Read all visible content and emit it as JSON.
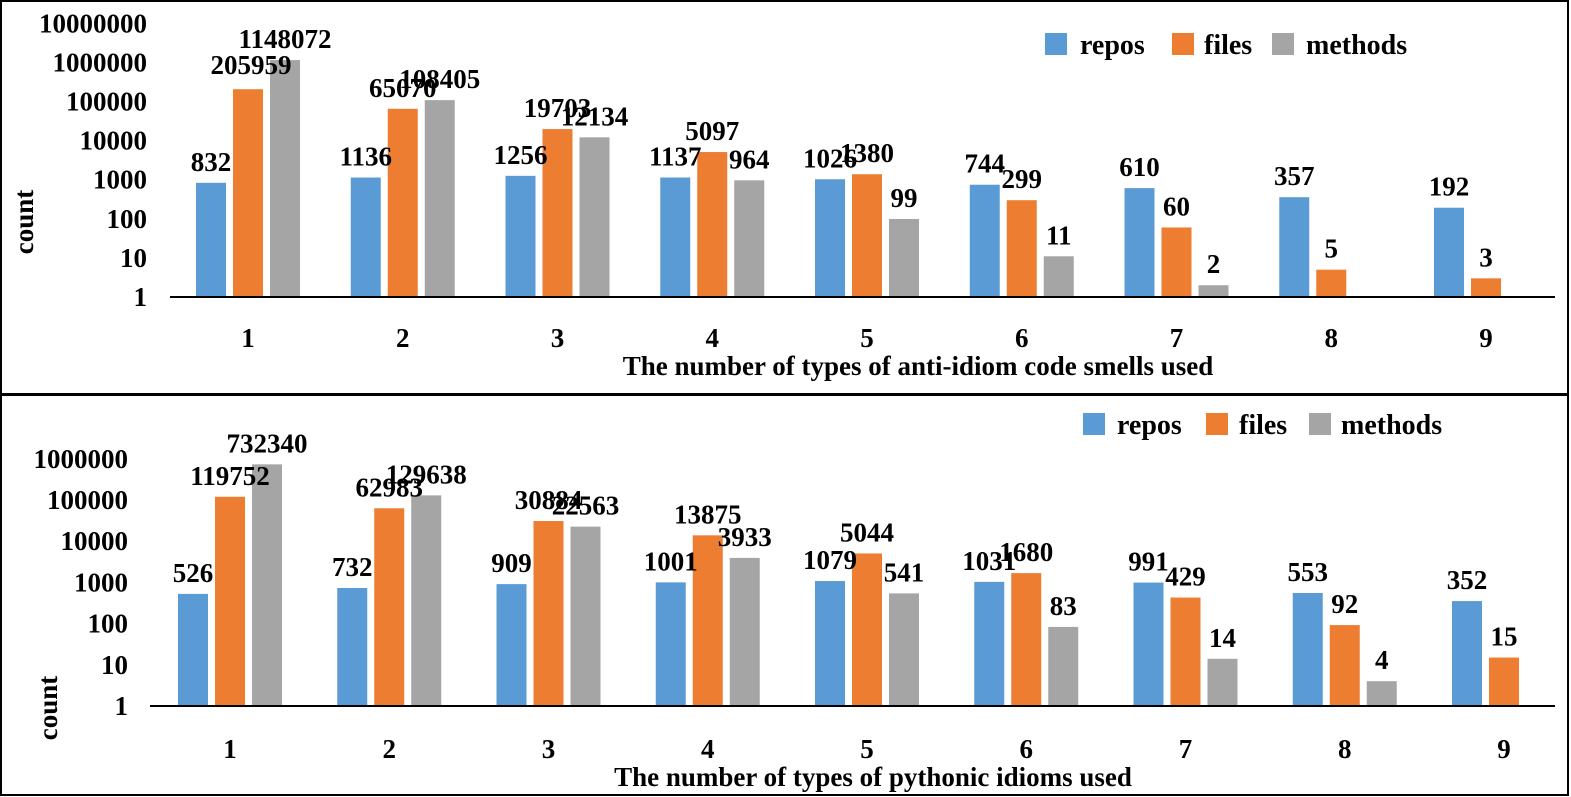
{
  "chart_data": [
    {
      "type": "bar",
      "scale": "log",
      "categories": [
        "1",
        "2",
        "3",
        "4",
        "5",
        "6",
        "7",
        "8",
        "9"
      ],
      "series": [
        {
          "name": "repos",
          "color": "#5b9bd5",
          "values": [
            832,
            1136,
            1256,
            1137,
            1026,
            744,
            610,
            357,
            192
          ]
        },
        {
          "name": "files",
          "color": "#ed7d31",
          "values": [
            205959,
            65070,
            19703,
            5097,
            1380,
            299,
            60,
            5,
            3
          ]
        },
        {
          "name": "methods",
          "color": "#a5a5a5",
          "values": [
            1148072,
            108405,
            12134,
            964,
            99,
            11,
            2,
            null,
            null
          ]
        }
      ],
      "value_labels": [
        [
          "832",
          "1136",
          "1256",
          "1137",
          "1026",
          "744",
          "610",
          "357",
          "192"
        ],
        [
          "205959",
          "65070",
          "19703",
          "5097",
          "1380",
          "299",
          "60",
          "5",
          "3"
        ],
        [
          "1148072",
          "108405",
          "12134",
          "964",
          "99",
          "11",
          "2",
          "",
          ""
        ]
      ],
      "title": "",
      "xlabel": "The number of types of anti-idiom code smells used",
      "ylabel": "count",
      "yticks": [
        "1",
        "10",
        "100",
        "1000",
        "10000",
        "100000",
        "1000000",
        "10000000"
      ],
      "ylim": [
        1,
        10000000
      ],
      "legend": "top-right",
      "grid": false
    },
    {
      "type": "bar",
      "scale": "log",
      "categories": [
        "1",
        "2",
        "3",
        "4",
        "5",
        "6",
        "7",
        "8",
        "9"
      ],
      "series": [
        {
          "name": "repos",
          "color": "#5b9bd5",
          "values": [
            526,
            732,
            909,
            1001,
            1079,
            1031,
            991,
            553,
            352
          ]
        },
        {
          "name": "files",
          "color": "#ed7d31",
          "values": [
            119752,
            62983,
            30884,
            13875,
            5044,
            1680,
            429,
            92,
            15
          ]
        },
        {
          "name": "methods",
          "color": "#a5a5a5",
          "values": [
            732340,
            129638,
            22563,
            3933,
            541,
            83,
            14,
            4,
            null
          ]
        }
      ],
      "value_labels": [
        [
          "526",
          "732",
          "909",
          "1001",
          "1079",
          "1031",
          "991",
          "553",
          "352"
        ],
        [
          "119752",
          "62983",
          "30884",
          "13875",
          "5044",
          "1680",
          "429",
          "92",
          "15"
        ],
        [
          "732340",
          "129638",
          "22563",
          "3933",
          "541",
          "83",
          "14",
          "4",
          ""
        ]
      ],
      "title": "",
      "xlabel": "The number of types of  pythonic idioms used",
      "ylabel": "count",
      "yticks": [
        "1",
        "10",
        "100",
        "1000",
        "10000",
        "100000",
        "1000000"
      ],
      "ylim": [
        1,
        1000000
      ],
      "legend": "top-right",
      "grid": false
    }
  ]
}
